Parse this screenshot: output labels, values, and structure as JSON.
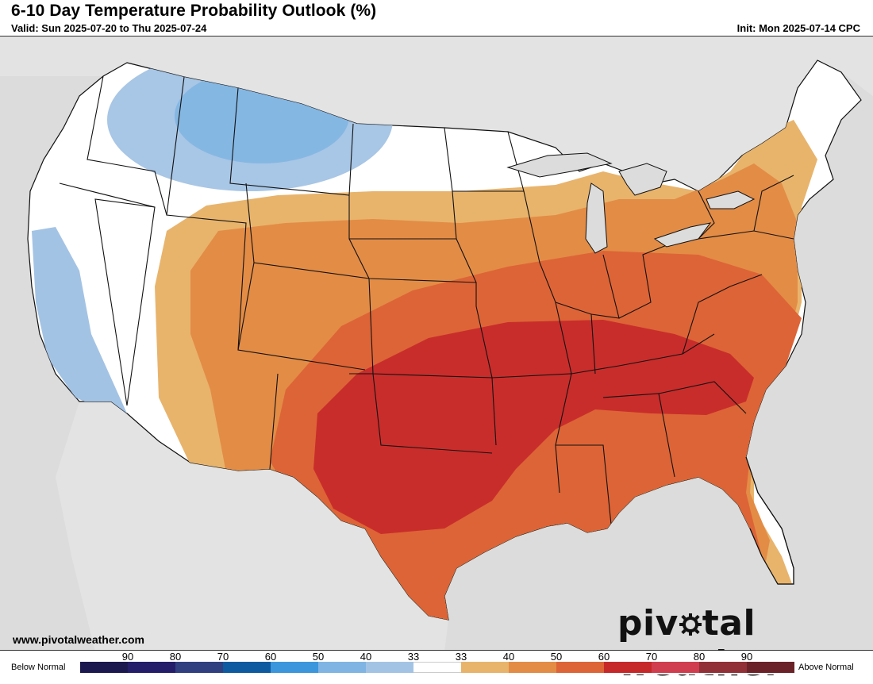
{
  "header": {
    "title": "6-10 Day Temperature Probability Outlook (%)",
    "valid": "Valid: Sun 2025-07-20 to Thu 2025-07-24",
    "init": "Init: Mon 2025-07-14 CPC"
  },
  "footer": {
    "website": "www.pivotalweather.com",
    "brand_part1": "piv",
    "brand_part2": "tal weather"
  },
  "legend": {
    "below_label": "Below Normal",
    "above_label": "Above Normal",
    "tick_labels": [
      "90",
      "80",
      "70",
      "60",
      "50",
      "40",
      "33",
      "33",
      "40",
      "50",
      "60",
      "70",
      "80",
      "90"
    ],
    "colors": [
      "#1b1850",
      "#231d6a",
      "#2f3f7f",
      "#0d5aa0",
      "#3b96dc",
      "#7fb4e3",
      "#a3c3e4",
      "#ffffff",
      "#e8b46c",
      "#e38c46",
      "#dd6436",
      "#c6282a",
      "#d03d4e",
      "#913037",
      "#6a2228"
    ]
  },
  "map": {
    "colors": {
      "land": "#ffffff",
      "background": "#dcdcdc",
      "blue_40": "#a3c3e4",
      "blue_50": "#7fb4e3",
      "orange_40": "#e8b46c",
      "orange_50": "#e38c46",
      "orange_60": "#dd6436",
      "red_70": "#c6282a"
    }
  }
}
